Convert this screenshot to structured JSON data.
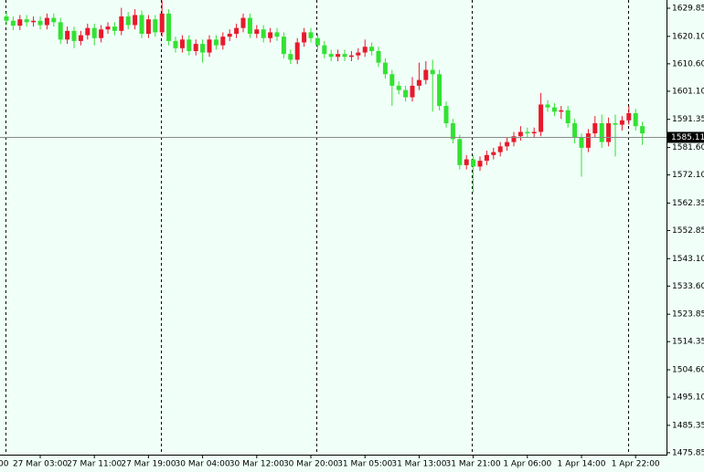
{
  "chart_data": {
    "type": "candlestick",
    "first_label": "00",
    "categories": [
      null,
      null,
      null,
      null,
      null,
      "27 Mar 03:00",
      null,
      null,
      null,
      null,
      null,
      null,
      null,
      "27 Mar 11:00",
      null,
      null,
      null,
      null,
      null,
      null,
      null,
      "27 Mar 19:00",
      null,
      null,
      null,
      null,
      null,
      null,
      null,
      "30 Mar 04:00",
      null,
      null,
      null,
      null,
      null,
      null,
      null,
      "30 Mar 12:00",
      null,
      null,
      null,
      null,
      null,
      null,
      null,
      "30 Mar 20:00",
      null,
      null,
      null,
      null,
      null,
      null,
      null,
      "31 Mar 05:00",
      null,
      null,
      null,
      null,
      null,
      null,
      null,
      "31 Mar 13:00",
      null,
      null,
      null,
      null,
      null,
      null,
      null,
      "31 Mar 21:00",
      null,
      null,
      null,
      null,
      null,
      null,
      null,
      "1 Apr 06:00",
      null,
      null,
      null,
      null,
      null,
      null,
      null,
      "1 Apr 14:00",
      null,
      null,
      null,
      null,
      null,
      null,
      null,
      "1 Apr 22:00",
      null
    ],
    "open": [
      1627.0,
      1625.5,
      1623.8,
      1626.0,
      1625.0,
      1625.5,
      1624.0,
      1626.5,
      1625.0,
      1619.0,
      1622.0,
      1618.5,
      1620.5,
      1623.0,
      1619.5,
      1622.5,
      1623.5,
      1622.0,
      1627.0,
      1624.0,
      1627.5,
      1621.0,
      1626.0,
      1621.5,
      1628.0,
      1618.5,
      1616.0,
      1619.0,
      1615.0,
      1617.5,
      1614.5,
      1619.0,
      1617.0,
      1620.0,
      1621.0,
      1623.0,
      1626.5,
      1621.0,
      1622.5,
      1619.5,
      1621.5,
      1620.0,
      1614.0,
      1612.0,
      1618.0,
      1621.5,
      1619.5,
      1617.0,
      1614.0,
      1613.0,
      1614.0,
      1613.0,
      1613.5,
      1614.5,
      1616.5,
      1615.0,
      1611.0,
      1607.0,
      1603.0,
      1601.5,
      1599.0,
      1603.0,
      1605.0,
      1608.5,
      1607.0,
      1596.0,
      1590.0,
      1584.5,
      1575.5,
      1577.5,
      1575.0,
      1577.0,
      1579.0,
      1580.0,
      1582.0,
      1583.5,
      1585.5,
      1587.0,
      1586.5,
      1587.0,
      1596.5,
      1595.5,
      1594.0,
      1594.5,
      1590.0,
      1585.0,
      1581.5,
      1586.5,
      1590.0,
      1583.5,
      1590.0,
      1589.5,
      1591.0,
      1593.5,
      1589.0
    ],
    "high": [
      1628.5,
      1627.0,
      1627.5,
      1627.5,
      1627.0,
      1627.0,
      1628.0,
      1628.0,
      1626.5,
      1623.5,
      1623.5,
      1622.0,
      1624.5,
      1624.5,
      1624.0,
      1625.0,
      1625.0,
      1630.0,
      1628.5,
      1629.5,
      1629.0,
      1627.5,
      1627.5,
      1632.5,
      1629.5,
      1620.0,
      1620.5,
      1620.5,
      1619.0,
      1619.0,
      1620.5,
      1620.5,
      1621.5,
      1622.5,
      1624.5,
      1628.0,
      1628.0,
      1624.0,
      1624.0,
      1623.0,
      1623.0,
      1621.5,
      1615.5,
      1619.5,
      1623.0,
      1623.0,
      1621.0,
      1618.5,
      1615.5,
      1615.5,
      1615.5,
      1615.0,
      1616.0,
      1619.0,
      1618.0,
      1616.5,
      1612.5,
      1608.5,
      1604.5,
      1603.0,
      1606.0,
      1611.0,
      1611.5,
      1612.0,
      1608.5,
      1597.5,
      1591.5,
      1586.0,
      1579.0,
      1579.0,
      1578.5,
      1580.5,
      1581.5,
      1583.5,
      1585.0,
      1587.0,
      1589.0,
      1588.5,
      1588.5,
      1600.5,
      1598.0,
      1597.0,
      1596.0,
      1596.0,
      1591.5,
      1586.5,
      1588.0,
      1592.5,
      1593.0,
      1592.0,
      1593.0,
      1592.5,
      1596.0,
      1595.0,
      1590.5
    ],
    "low": [
      1624.0,
      1622.3,
      1622.3,
      1623.5,
      1623.5,
      1622.5,
      1622.5,
      1623.5,
      1617.5,
      1617.5,
      1616.0,
      1617.0,
      1619.0,
      1617.0,
      1618.0,
      1621.0,
      1620.5,
      1620.5,
      1622.5,
      1622.5,
      1619.5,
      1619.5,
      1620.0,
      1620.0,
      1617.0,
      1614.5,
      1614.5,
      1613.5,
      1613.5,
      1611.0,
      1613.0,
      1615.5,
      1615.5,
      1618.5,
      1619.5,
      1621.5,
      1619.5,
      1619.5,
      1618.0,
      1618.0,
      1618.5,
      1612.5,
      1610.5,
      1610.5,
      1616.5,
      1618.0,
      1615.5,
      1612.5,
      1611.5,
      1611.5,
      1611.5,
      1611.5,
      1612.0,
      1613.0,
      1613.5,
      1609.5,
      1605.5,
      1596.0,
      1600.0,
      1597.5,
      1597.5,
      1601.5,
      1603.5,
      1594.0,
      1594.5,
      1588.5,
      1583.0,
      1574.0,
      1574.0,
      1566.0,
      1573.5,
      1575.5,
      1577.5,
      1578.5,
      1580.5,
      1582.0,
      1584.0,
      1585.0,
      1585.0,
      1585.5,
      1594.0,
      1592.5,
      1591.5,
      1588.5,
      1583.0,
      1571.5,
      1580.0,
      1585.0,
      1581.5,
      1582.0,
      1578.5,
      1587.5,
      1589.5,
      1587.5,
      1582.5
    ],
    "close": [
      1625.5,
      1623.8,
      1626.0,
      1625.0,
      1625.5,
      1624.0,
      1626.5,
      1625.0,
      1619.0,
      1622.0,
      1618.5,
      1620.5,
      1623.0,
      1619.5,
      1622.5,
      1623.5,
      1622.0,
      1627.0,
      1624.0,
      1627.5,
      1621.0,
      1626.0,
      1621.5,
      1628.0,
      1618.5,
      1616.0,
      1619.0,
      1615.0,
      1617.5,
      1614.5,
      1619.0,
      1617.0,
      1620.0,
      1621.0,
      1623.0,
      1626.5,
      1621.0,
      1622.5,
      1619.5,
      1621.5,
      1620.0,
      1614.0,
      1612.0,
      1618.0,
      1621.5,
      1619.5,
      1617.0,
      1614.0,
      1613.0,
      1614.0,
      1613.0,
      1613.5,
      1614.5,
      1616.5,
      1615.0,
      1611.0,
      1607.0,
      1603.0,
      1601.5,
      1599.0,
      1603.0,
      1605.0,
      1608.5,
      1607.0,
      1596.0,
      1590.0,
      1584.5,
      1575.5,
      1577.5,
      1575.0,
      1577.0,
      1579.0,
      1580.0,
      1582.0,
      1583.5,
      1585.5,
      1587.0,
      1586.5,
      1587.0,
      1596.5,
      1595.5,
      1594.0,
      1594.5,
      1590.0,
      1585.0,
      1581.5,
      1586.5,
      1590.0,
      1583.5,
      1590.0,
      1589.5,
      1591.0,
      1593.5,
      1589.0,
      1586.5
    ],
    "up_color": "#e8192c",
    "down_color": "#32e232",
    "ylim": [
      1475.2,
      1632.7
    ],
    "yticks": [
      1629.85,
      {
        "value": 1620.1,
        "label": "1620.10"
      },
      {
        "value": 1610.6,
        "label": "1610.60"
      },
      {
        "value": 1601.1,
        "label": "1601.10"
      },
      1591.35,
      {
        "value": 1581.6,
        "label": "1581.60"
      },
      {
        "value": 1572.1,
        "label": "1572.10"
      },
      1562.35,
      1552.85,
      {
        "value": 1543.1,
        "label": "1543.10"
      },
      {
        "value": 1533.6,
        "label": "1533.60"
      },
      1523.85,
      1514.35,
      {
        "value": 1504.6,
        "label": "1504.60"
      },
      {
        "value": 1495.1,
        "label": "1495.10"
      },
      1485.35,
      1475.85
    ],
    "current_price": 1585.11
  }
}
